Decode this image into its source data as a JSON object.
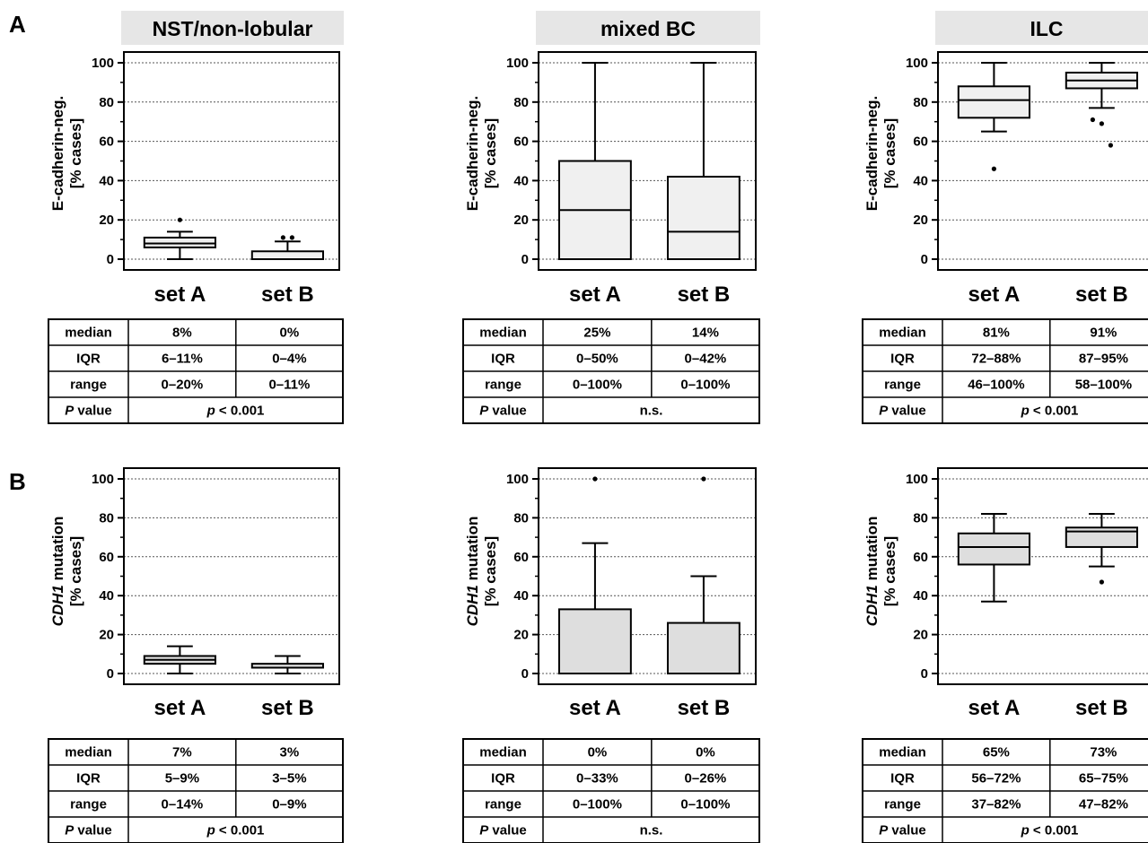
{
  "panel_labels": [
    "A",
    "B"
  ],
  "column_titles": [
    "NST/non-lobular",
    "mixed BC",
    "ILC"
  ],
  "y_label": {
    "A": {
      "line1": "E-cadherin-neg.",
      "line2": "[% cases]"
    },
    "B": {
      "line1_italic": "CDH1",
      "line1_rest": " mutation",
      "line2": "[% cases]"
    }
  },
  "table_row_labels": [
    "median",
    "IQR",
    "range"
  ],
  "p_label": {
    "italic": "P",
    "rest": " value"
  },
  "chart_data": [
    {
      "type": "box",
      "panel": "A",
      "column": "NST/non-lobular",
      "categories": [
        "set A",
        "set B"
      ],
      "ylim": [
        0,
        100
      ],
      "yticks": [
        0,
        20,
        40,
        60,
        80,
        100
      ],
      "grid": true,
      "boxes": [
        {
          "min": 0,
          "q1": 6,
          "median": 8,
          "q3": 11,
          "max": 14,
          "outliers": [
            20
          ]
        },
        {
          "min": 0,
          "q1": 0,
          "median": 0,
          "q3": 4,
          "max": 9,
          "outliers": [
            11,
            11
          ]
        }
      ],
      "table": {
        "median": [
          "8%",
          "0%"
        ],
        "IQR": [
          "6–11%",
          "0–4%"
        ],
        "range": [
          "0–20%",
          "0–11%"
        ],
        "p": {
          "prefix": "p",
          "rest": " < 0.001"
        }
      }
    },
    {
      "type": "box",
      "panel": "A",
      "column": "mixed BC",
      "categories": [
        "set A",
        "set B"
      ],
      "ylim": [
        0,
        100
      ],
      "yticks": [
        0,
        20,
        40,
        60,
        80,
        100
      ],
      "grid": true,
      "boxes": [
        {
          "min": 0,
          "q1": 0,
          "median": 25,
          "q3": 50,
          "max": 100,
          "outliers": []
        },
        {
          "min": 0,
          "q1": 0,
          "median": 14,
          "q3": 42,
          "max": 100,
          "outliers": []
        }
      ],
      "table": {
        "median": [
          "25%",
          "14%"
        ],
        "IQR": [
          "0–50%",
          "0–42%"
        ],
        "range": [
          "0–100%",
          "0–100%"
        ],
        "p": {
          "prefix": "",
          "rest": "n.s."
        }
      }
    },
    {
      "type": "box",
      "panel": "A",
      "column": "ILC",
      "categories": [
        "set A",
        "set B"
      ],
      "ylim": [
        0,
        100
      ],
      "yticks": [
        0,
        20,
        40,
        60,
        80,
        100
      ],
      "grid": true,
      "boxes": [
        {
          "min": 65,
          "q1": 72,
          "median": 81,
          "q3": 88,
          "max": 100,
          "outliers": [
            46
          ]
        },
        {
          "min": 77,
          "q1": 87,
          "median": 91,
          "q3": 95,
          "max": 100,
          "outliers": [
            71,
            69,
            58
          ]
        }
      ],
      "table": {
        "median": [
          "81%",
          "91%"
        ],
        "IQR": [
          "72–88%",
          "87–95%"
        ],
        "range": [
          "46–100%",
          "58–100%"
        ],
        "p": {
          "prefix": "p",
          "rest": " < 0.001"
        }
      }
    },
    {
      "type": "box",
      "panel": "B",
      "column": "NST/non-lobular",
      "categories": [
        "set A",
        "set B"
      ],
      "ylim": [
        0,
        100
      ],
      "yticks": [
        0,
        20,
        40,
        60,
        80,
        100
      ],
      "grid": true,
      "boxes": [
        {
          "min": 0,
          "q1": 5,
          "median": 7,
          "q3": 9,
          "max": 14,
          "outliers": []
        },
        {
          "min": 0,
          "q1": 3,
          "median": 3,
          "q3": 5,
          "max": 9,
          "outliers": []
        }
      ],
      "table": {
        "median": [
          "7%",
          "3%"
        ],
        "IQR": [
          "5–9%",
          "3–5%"
        ],
        "range": [
          "0–14%",
          "0–9%"
        ],
        "p": {
          "prefix": "p",
          "rest": " < 0.001"
        }
      }
    },
    {
      "type": "box",
      "panel": "B",
      "column": "mixed BC",
      "categories": [
        "set A",
        "set B"
      ],
      "ylim": [
        0,
        100
      ],
      "yticks": [
        0,
        20,
        40,
        60,
        80,
        100
      ],
      "grid": true,
      "boxes": [
        {
          "min": 0,
          "q1": 0,
          "median": 0,
          "q3": 33,
          "max": 67,
          "outliers": [
            100
          ]
        },
        {
          "min": 0,
          "q1": 0,
          "median": 0,
          "q3": 26,
          "max": 50,
          "outliers": [
            100
          ]
        }
      ],
      "table": {
        "median": [
          "0%",
          "0%"
        ],
        "IQR": [
          "0–33%",
          "0–26%"
        ],
        "range": [
          "0–100%",
          "0–100%"
        ],
        "p": {
          "prefix": "",
          "rest": "n.s."
        }
      }
    },
    {
      "type": "box",
      "panel": "B",
      "column": "ILC",
      "categories": [
        "set A",
        "set B"
      ],
      "ylim": [
        0,
        100
      ],
      "yticks": [
        0,
        20,
        40,
        60,
        80,
        100
      ],
      "grid": true,
      "boxes": [
        {
          "min": 37,
          "q1": 56,
          "median": 65,
          "q3": 72,
          "max": 82,
          "outliers": []
        },
        {
          "min": 55,
          "q1": 65,
          "median": 73,
          "q3": 75,
          "max": 82,
          "outliers": [
            47
          ]
        }
      ],
      "table": {
        "median": [
          "65%",
          "73%"
        ],
        "IQR": [
          "56–72%",
          "65–75%"
        ],
        "range": [
          "37–82%",
          "47–82%"
        ],
        "p": {
          "prefix": "p",
          "rest": " < 0.001"
        }
      }
    }
  ]
}
